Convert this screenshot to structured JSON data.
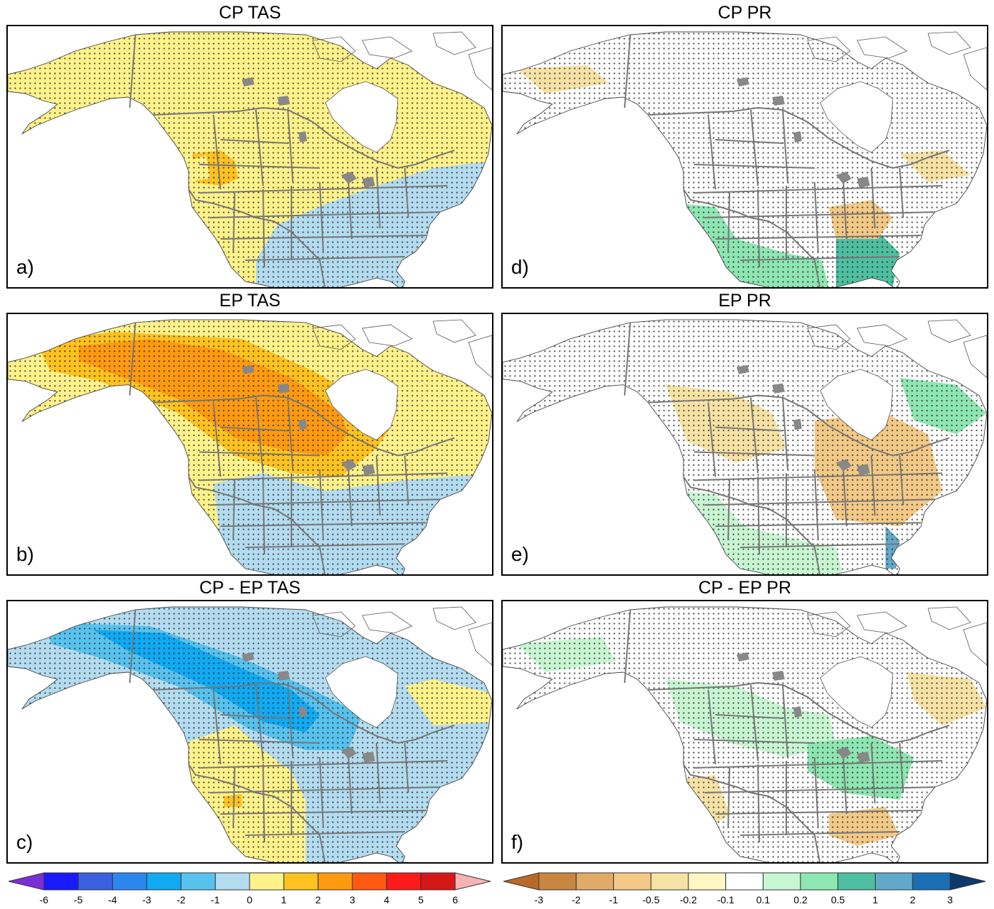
{
  "panels": [
    {
      "id": "a",
      "title": "CP TAS",
      "label": "a)",
      "variable": "TAS"
    },
    {
      "id": "b",
      "title": "EP TAS",
      "label": "b)",
      "variable": "TAS"
    },
    {
      "id": "c",
      "title": "CP - EP TAS",
      "label": "c)",
      "variable": "TAS"
    },
    {
      "id": "d",
      "title": "CP PR",
      "label": "d)",
      "variable": "PR"
    },
    {
      "id": "e",
      "title": "EP PR",
      "label": "e)",
      "variable": "PR"
    },
    {
      "id": "f",
      "title": "CP - EP PR",
      "label": "f)",
      "variable": "PR"
    }
  ],
  "colorbars": {
    "tas": {
      "ticks": [
        "-6",
        "-5",
        "-4",
        "-3",
        "-2",
        "-1",
        "0",
        "1",
        "2",
        "3",
        "4",
        "5",
        "6"
      ],
      "colors": [
        "#7b2fd6",
        "#1a1aff",
        "#3a5fe0",
        "#2b86f0",
        "#10aaf2",
        "#58c2ee",
        "#b4dcf0",
        "#fff28a",
        "#ffc21e",
        "#ff9a10",
        "#ff5a10",
        "#ff1a1a",
        "#d41818",
        "#f6b3b3"
      ]
    },
    "pr": {
      "ticks": [
        "-3",
        "-2",
        "-1",
        "-0.5",
        "-0.2",
        "-0.1",
        "0.1",
        "0.2",
        "0.5",
        "1",
        "2",
        "3"
      ],
      "colors": [
        "#b86a2a",
        "#c98640",
        "#e0ab68",
        "#f3c987",
        "#f6e2a4",
        "#fff6c4",
        "#ffffff",
        "#c8f6d2",
        "#8ee6b2",
        "#4ebfa0",
        "#62a8c8",
        "#1a6fb4",
        "#0c3a6a"
      ]
    }
  }
}
